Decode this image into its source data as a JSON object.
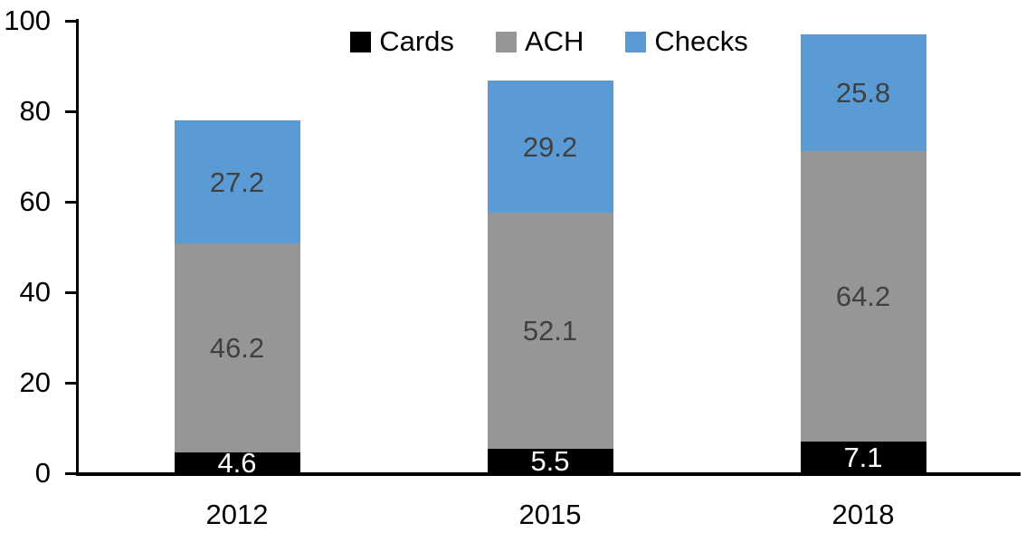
{
  "chart_data": {
    "type": "bar",
    "stacked": true,
    "categories": [
      "2012",
      "2015",
      "2018"
    ],
    "series": [
      {
        "name": "Cards",
        "color": "#000000",
        "label_color": "#FFFFFF",
        "values": [
          4.6,
          5.5,
          7.1
        ]
      },
      {
        "name": "ACH",
        "color": "#969696",
        "label_color": "#404040",
        "values": [
          46.2,
          52.1,
          64.2
        ]
      },
      {
        "name": "Checks",
        "color": "#5B9BD5",
        "label_color": "#404040",
        "values": [
          27.2,
          29.2,
          25.8
        ]
      }
    ],
    "yticks": [
      0,
      20,
      40,
      60,
      80,
      100
    ],
    "ylim": [
      0,
      100
    ],
    "grid": false,
    "legend_position": "top",
    "axis_color": "#000000",
    "background_color": "#FFFFFF"
  }
}
